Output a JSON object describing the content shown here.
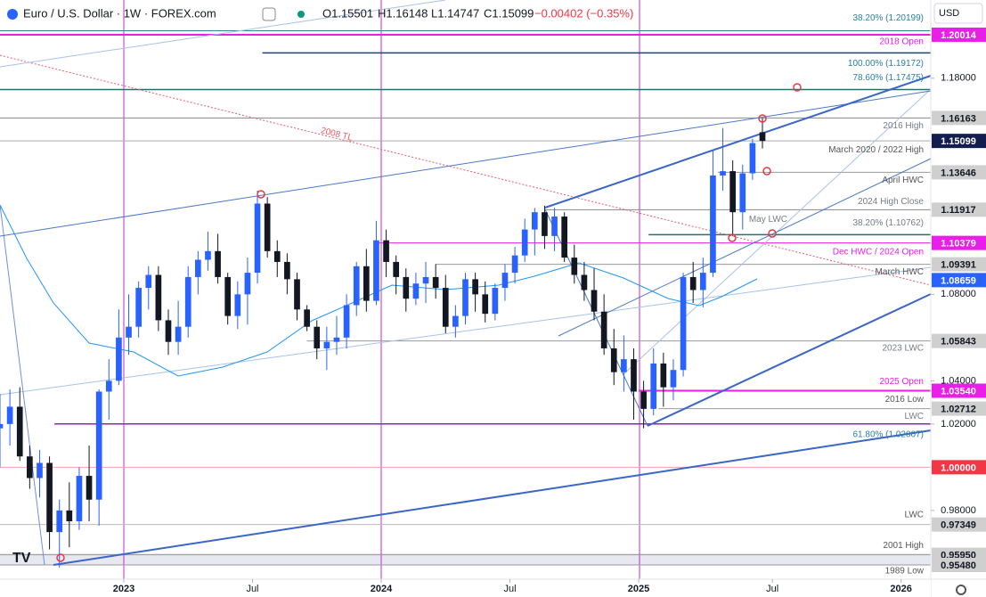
{
  "header": {
    "title": "Euro / U.S. Dollar · 1W · FOREX.com",
    "open": "O1.15501",
    "high": "H1.16148",
    "low": "L1.14747",
    "close": "C1.15099",
    "change": "−0.00402 (−0.35%)",
    "currency": "USD"
  },
  "chart_data": {
    "type": "candlestick",
    "xlim": [
      -25,
      163
    ],
    "ylim": [
      0.9482,
      1.2162
    ],
    "xticks": [
      {
        "value": 0,
        "label": "2023"
      },
      {
        "value": 26,
        "label": "Jul"
      },
      {
        "value": 52,
        "label": "2024"
      },
      {
        "value": 78,
        "label": "Jul"
      },
      {
        "value": 104,
        "label": "2025"
      },
      {
        "value": 131,
        "label": "Jul"
      },
      {
        "value": 157,
        "label": "2026"
      }
    ],
    "yticks": [
      {
        "value": 1.18,
        "label": "1.18000"
      },
      {
        "value": 1.08,
        "label": "1.08000"
      },
      {
        "value": 1.04,
        "label": "1.04000"
      },
      {
        "value": 1.02,
        "label": "1.02000"
      },
      {
        "value": 0.98,
        "label": "0.98000"
      }
    ],
    "up_color": "#2962ff",
    "down_color": "#131722",
    "candles": {
      "x": [
        -25,
        -23,
        -21,
        -19,
        -17,
        -15,
        -13,
        -11,
        -9,
        -7,
        -5,
        -3,
        -1,
        1,
        3,
        5,
        7,
        9,
        11,
        13,
        15,
        17,
        19,
        21,
        23,
        25,
        27,
        29,
        31,
        33,
        35,
        37,
        39,
        41,
        43,
        45,
        47,
        49,
        51,
        53,
        55,
        57,
        59,
        61,
        63,
        65,
        67,
        69,
        71,
        73,
        75,
        77,
        79,
        81,
        83,
        85,
        87,
        89,
        91,
        93,
        95,
        97,
        99,
        101,
        103,
        105,
        107,
        109,
        111,
        113,
        115,
        117,
        119,
        121,
        123,
        125,
        127,
        129
      ],
      "open": [
        1.018,
        1.02,
        1.028,
        1.005,
        0.995,
        1.002,
        0.97,
        0.98,
        0.975,
        0.996,
        0.985,
        1.035,
        1.04,
        1.06,
        1.065,
        1.083,
        1.089,
        1.068,
        1.058,
        1.065,
        1.088,
        1.096,
        1.1,
        1.088,
        1.07,
        1.08,
        1.09,
        1.122,
        1.1,
        1.095,
        1.087,
        1.073,
        1.065,
        1.055,
        1.058,
        1.06,
        1.075,
        1.093,
        1.077,
        1.105,
        1.095,
        1.088,
        1.078,
        1.085,
        1.088,
        1.083,
        1.065,
        1.07,
        1.087,
        1.08,
        1.071,
        1.083,
        1.09,
        1.098,
        1.11,
        1.118,
        1.107,
        1.116,
        1.097,
        1.089,
        1.082,
        1.072,
        1.055,
        1.044,
        1.05,
        1.035,
        1.027,
        1.048,
        1.037,
        1.045,
        1.088,
        1.082,
        1.09,
        1.135,
        1.137,
        1.118,
        1.136,
        1.15501
      ],
      "high": [
        1.034,
        1.036,
        1.037,
        1.01,
        1.008,
        1.005,
        0.985,
        0.993,
        1.0,
        1.01,
        1.036,
        1.05,
        1.073,
        1.08,
        1.086,
        1.093,
        1.093,
        1.073,
        1.077,
        1.093,
        1.1,
        1.109,
        1.108,
        1.09,
        1.086,
        1.097,
        1.128,
        1.125,
        1.105,
        1.099,
        1.09,
        1.075,
        1.068,
        1.065,
        1.07,
        1.08,
        1.095,
        1.101,
        1.114,
        1.11,
        1.098,
        1.092,
        1.09,
        1.095,
        1.094,
        1.089,
        1.075,
        1.09,
        1.09,
        1.086,
        1.085,
        1.094,
        1.102,
        1.115,
        1.12,
        1.121,
        1.12,
        1.118,
        1.103,
        1.095,
        1.092,
        1.08,
        1.064,
        1.061,
        1.055,
        1.04,
        1.055,
        1.053,
        1.05,
        1.09,
        1.095,
        1.097,
        1.147,
        1.157,
        1.142,
        1.14,
        1.152,
        1.16148
      ],
      "low": [
        1.0,
        1.01,
        1.003,
        0.99,
        0.986,
        0.962,
        0.9536,
        0.963,
        0.971,
        0.975,
        0.973,
        1.022,
        1.038,
        1.052,
        1.06,
        1.073,
        1.063,
        1.052,
        1.052,
        1.06,
        1.08,
        1.091,
        1.085,
        1.066,
        1.064,
        1.066,
        1.085,
        1.097,
        1.088,
        1.08,
        1.068,
        1.063,
        1.05,
        1.045,
        1.052,
        1.055,
        1.07,
        1.072,
        1.075,
        1.088,
        1.08,
        1.072,
        1.075,
        1.076,
        1.078,
        1.062,
        1.06,
        1.066,
        1.072,
        1.067,
        1.068,
        1.077,
        1.085,
        1.095,
        1.098,
        1.101,
        1.1,
        1.095,
        1.085,
        1.077,
        1.068,
        1.052,
        1.038,
        1.035,
        1.022,
        1.018,
        1.024,
        1.028,
        1.031,
        1.042,
        1.076,
        1.074,
        1.088,
        1.128,
        1.107,
        1.11,
        1.133,
        1.14747
      ],
      "close": [
        1.02,
        1.028,
        1.005,
        0.995,
        1.002,
        0.97,
        0.98,
        0.975,
        0.996,
        0.985,
        1.035,
        1.04,
        1.06,
        1.065,
        1.083,
        1.089,
        1.068,
        1.058,
        1.065,
        1.088,
        1.096,
        1.1,
        1.088,
        1.07,
        1.08,
        1.09,
        1.122,
        1.1,
        1.095,
        1.087,
        1.073,
        1.065,
        1.055,
        1.058,
        1.06,
        1.075,
        1.093,
        1.077,
        1.105,
        1.095,
        1.088,
        1.078,
        1.085,
        1.088,
        1.083,
        1.065,
        1.07,
        1.087,
        1.08,
        1.071,
        1.083,
        1.09,
        1.098,
        1.11,
        1.118,
        1.107,
        1.116,
        1.097,
        1.089,
        1.082,
        1.072,
        1.055,
        1.044,
        1.05,
        1.035,
        1.027,
        1.048,
        1.037,
        1.045,
        1.088,
        1.082,
        1.09,
        1.135,
        1.137,
        1.118,
        1.136,
        1.15,
        1.15099
      ]
    },
    "levels": [
      {
        "value": 1.20199,
        "label": "38.20% (1.20199)",
        "color": "#2a8a94",
        "text_color": "#2a7ea0"
      },
      {
        "value": 1.20014,
        "label": "2018 Open",
        "color": "#e91ee9",
        "text_color": "#e91ee9"
      },
      {
        "value": 1.19172,
        "label": "100.00% (1.19172)",
        "color": "#1e3f8a",
        "text_color": "#2a7ea0"
      },
      {
        "value": 1.17475,
        "label": "78.60% (1.17475)",
        "color": "#2a6e6e",
        "text_color": "#2a7ea0"
      },
      {
        "value": 1.16163,
        "label": "2016 High",
        "color": "#888888",
        "text_color": "#787b86"
      },
      {
        "value": 1.151,
        "label": "March 2020 / 2022 High",
        "color": "#aaaaaa",
        "text_color": "#555555"
      },
      {
        "value": 1.13646,
        "label": "April HWC",
        "color": "#999999",
        "text_color": "#555555"
      },
      {
        "value": 1.11917,
        "label": "2024 High Close",
        "color": "#888888",
        "text_color": "#787b86"
      },
      {
        "value": 1.10762,
        "label": "38.20% (1.10762)",
        "color": "#2a6e6e",
        "text_color": "#787b86"
      },
      {
        "value": 1.10379,
        "label": "Dec HWC / 2024 Open",
        "color": "#e91ee9",
        "text_color": "#e91ee9"
      },
      {
        "value": 1.09391,
        "label": "March HWC",
        "color": "#999999",
        "text_color": "#555555"
      },
      {
        "value": 1.05843,
        "label": "2023 LWC",
        "color": "#999999",
        "text_color": "#787b86"
      },
      {
        "value": 1.0354,
        "label": "2025 Open",
        "color": "#e91ee9",
        "text_color": "#e91ee9"
      },
      {
        "value": 1.02712,
        "label": "2016 Low",
        "color": "#999999",
        "text_color": "#555555"
      },
      {
        "value": 1.02007,
        "label": "61.80% (1.02007)",
        "color": "#8e24aa",
        "text_color": "#2a7ea0"
      },
      {
        "value": 1.0,
        "color": "#f7a1a8"
      },
      {
        "value": 0.97349,
        "label": "LWC",
        "color": "#bbbbbb",
        "text_color": "#555555"
      },
      {
        "value": 0.9595,
        "label": "2001 High",
        "color": "#999999",
        "text_color": "#555555"
      },
      {
        "value": 0.9548,
        "label": "1989 Low",
        "color": "#999999",
        "text_color": "#555555"
      }
    ],
    "annotations": [
      {
        "text": "May LWC",
        "value": 1.1092
      },
      {
        "text": "LWC",
        "value": 1.0236
      },
      {
        "text": "2008 TL",
        "value": 1.154
      }
    ],
    "price_labels": [
      {
        "value": 1.20014,
        "label": "1.20014",
        "color": "#e91ee9",
        "text_color": "#ffffff"
      },
      {
        "value": 1.16163,
        "label": "1.16163",
        "color": "#cfcfcf",
        "text_color": "#131722"
      },
      {
        "value": 1.15099,
        "label": "1.15099",
        "color": "#131d4f",
        "text_color": "#ffffff"
      },
      {
        "value": 1.13646,
        "label": "1.13646",
        "color": "#cfcfcf",
        "text_color": "#131722"
      },
      {
        "value": 1.11917,
        "label": "1.11917",
        "color": "#cfcfcf",
        "text_color": "#131722"
      },
      {
        "value": 1.10379,
        "label": "1.10379",
        "color": "#e91ee9",
        "text_color": "#ffffff"
      },
      {
        "value": 1.09391,
        "label": "1.09391",
        "color": "#cfcfcf",
        "text_color": "#131722"
      },
      {
        "value": 1.08659,
        "label": "1.08659",
        "color": "#2962ff",
        "text_color": "#ffffff"
      },
      {
        "value": 1.05843,
        "label": "1.05843",
        "color": "#cfcfcf",
        "text_color": "#131722"
      },
      {
        "value": 1.0354,
        "label": "1.03540",
        "color": "#e91ee9",
        "text_color": "#ffffff"
      },
      {
        "value": 1.02712,
        "label": "1.02712",
        "color": "#cfcfcf",
        "text_color": "#131722"
      },
      {
        "value": 1.0,
        "label": "1.00000",
        "color": "#f23645",
        "text_color": "#ffffff"
      },
      {
        "value": 0.97349,
        "label": "0.97349",
        "color": "#cfcfcf",
        "text_color": "#131722"
      },
      {
        "value": 0.9595,
        "label": "0.95950",
        "color": "#cfcfcf",
        "text_color": "#131722"
      },
      {
        "value": 0.9548,
        "label": "0.95480",
        "color": "#cfcfcf",
        "text_color": "#131722"
      }
    ]
  }
}
